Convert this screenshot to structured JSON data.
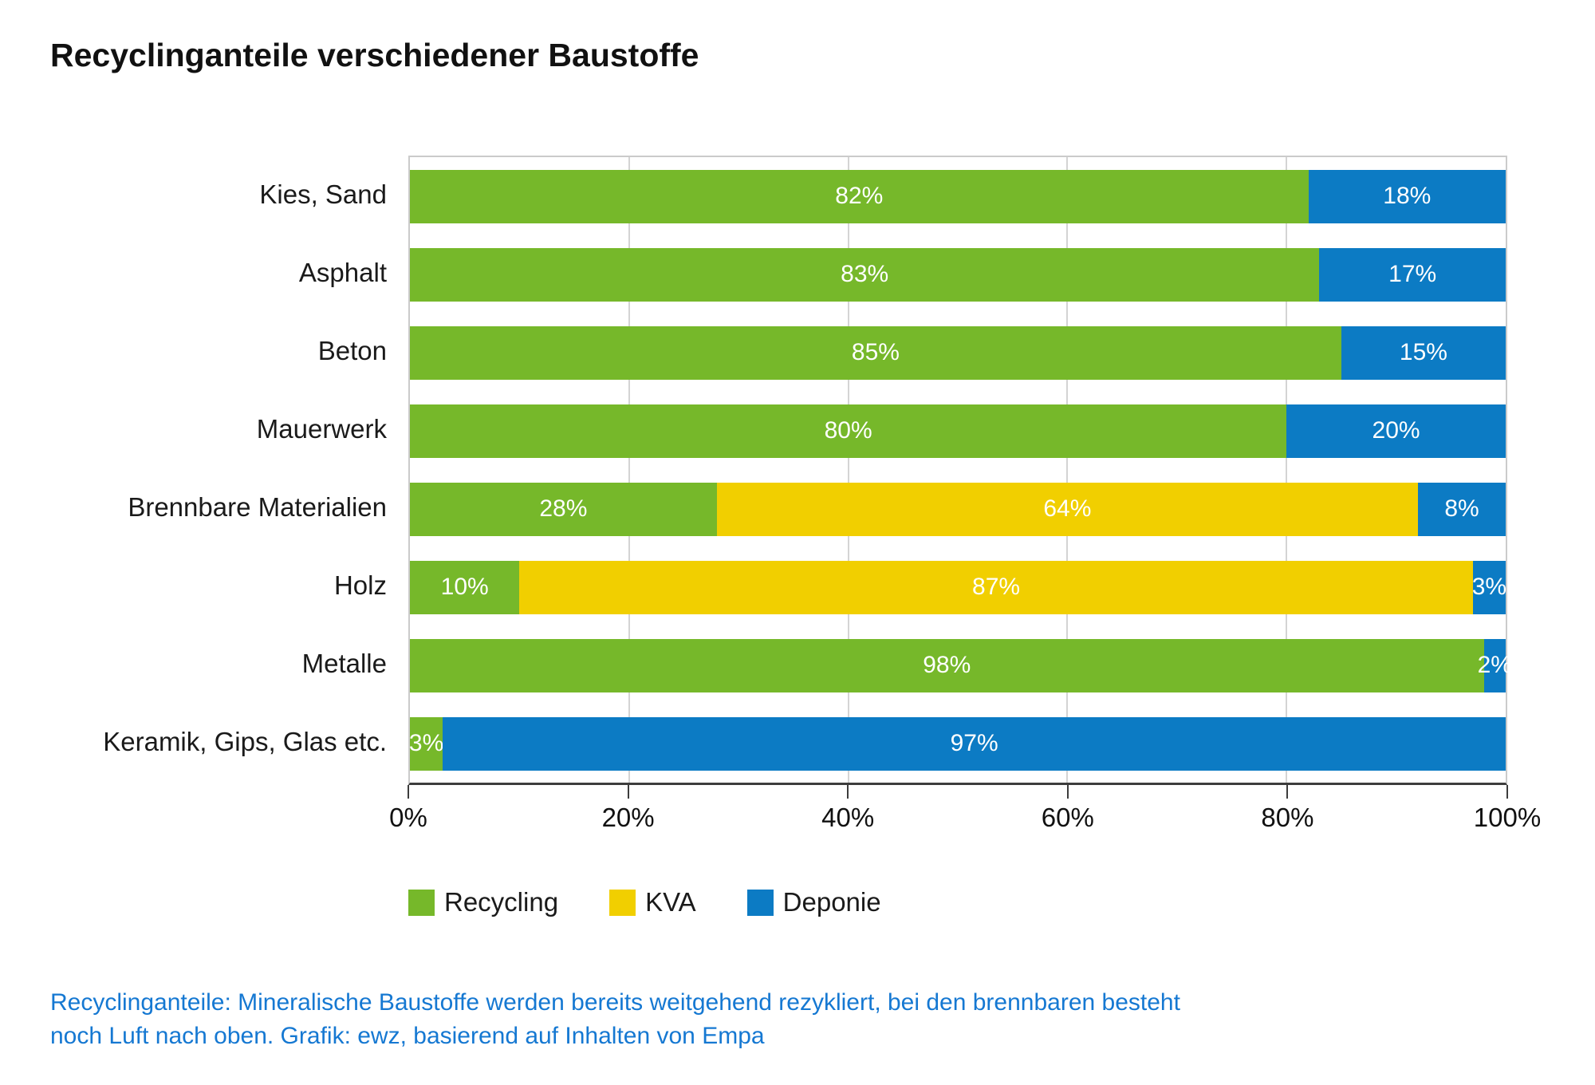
{
  "title": "Recyclinganteile verschiedener Baustoffe",
  "caption": {
    "line1": "Recyclinganteile: Mineralische Baustoffe werden bereits weitgehend rezykliert, bei den brennbaren besteht",
    "line2": "noch Luft nach oben. Grafik: ewz, basierend auf Inhalten von Empa",
    "color": "#1578D2"
  },
  "chart_data": {
    "type": "bar",
    "subtype": "horizontal-stacked",
    "title": "Recyclinganteile verschiedener Baustoffe",
    "categories": [
      "Kies, Sand",
      "Asphalt",
      "Beton",
      "Mauerwerk",
      "Brennbare Materialien",
      "Holz",
      "Metalle",
      "Keramik, Gips, Glas etc."
    ],
    "series": [
      {
        "name": "Recycling",
        "color": "#76B82A",
        "values": [
          82,
          83,
          85,
          80,
          28,
          10,
          98,
          3
        ]
      },
      {
        "name": "KVA",
        "color": "#F1CF00",
        "values": [
          0,
          0,
          0,
          0,
          64,
          87,
          0,
          0
        ]
      },
      {
        "name": "Deponie",
        "color": "#0C7BC4",
        "values": [
          18,
          17,
          15,
          20,
          8,
          3,
          2,
          97
        ]
      }
    ],
    "x_ticks": [
      "0%",
      "20%",
      "40%",
      "60%",
      "80%",
      "100%"
    ],
    "xlim": [
      0,
      100
    ],
    "grid": "vertical-20pct-steps",
    "legend_position": "bottom-left",
    "bar_label_format": "{value}%",
    "bar_label_color": "#ffffff"
  }
}
